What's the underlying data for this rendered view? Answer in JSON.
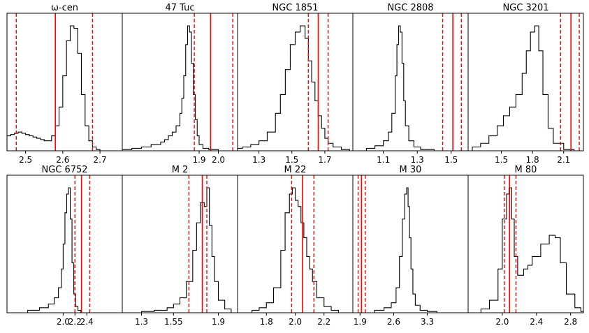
{
  "figure": {
    "rows": 2,
    "cols": 5
  },
  "chart_data": [
    {
      "type": "histogram",
      "title": "ω-cen",
      "xlim": [
        2.45,
        2.76
      ],
      "xticks": [
        2.5,
        2.6,
        2.7
      ],
      "xtick_labels": [
        "2.5",
        "2.6",
        "2.7"
      ],
      "vlines": {
        "median": 2.58,
        "dashed": [
          2.475,
          2.68
        ]
      },
      "x": [
        2.45,
        2.46,
        2.47,
        2.48,
        2.49,
        2.5,
        2.51,
        2.52,
        2.53,
        2.54,
        2.55,
        2.56,
        2.57,
        2.58,
        2.59,
        2.6,
        2.61,
        2.62,
        2.63,
        2.64,
        2.65,
        2.66,
        2.67,
        2.68,
        2.69,
        2.7,
        2.71,
        2.72,
        2.73,
        2.74,
        2.75
      ],
      "y": [
        0.12,
        0.13,
        0.14,
        0.15,
        0.14,
        0.13,
        0.12,
        0.11,
        0.1,
        0.09,
        0.08,
        0.08,
        0.12,
        0.2,
        0.35,
        0.6,
        0.88,
        1.0,
        0.98,
        0.78,
        0.45,
        0.2,
        0.08,
        0.03,
        0.01,
        0,
        0,
        0,
        0,
        0,
        0
      ]
    },
    {
      "type": "histogram",
      "title": "47 Tuc",
      "xlim": [
        1.5,
        2.1
      ],
      "xticks": [
        1.9,
        2.0
      ],
      "xtick_labels": [
        "1.9",
        "2.0"
      ],
      "vlines": {
        "median": 1.96,
        "dashed": [
          1.875,
          2.075
        ]
      },
      "x": [
        1.5,
        1.55,
        1.6,
        1.65,
        1.7,
        1.72,
        1.74,
        1.76,
        1.78,
        1.8,
        1.81,
        1.82,
        1.83,
        1.84,
        1.85,
        1.86,
        1.87,
        1.88,
        1.89,
        1.9,
        1.92,
        1.95,
        2.0,
        2.05
      ],
      "y": [
        0.01,
        0.02,
        0.03,
        0.05,
        0.07,
        0.09,
        0.12,
        0.15,
        0.2,
        0.3,
        0.42,
        0.6,
        0.85,
        1.0,
        0.95,
        0.7,
        0.45,
        0.25,
        0.12,
        0.05,
        0.02,
        0.01,
        0,
        0
      ]
    },
    {
      "type": "histogram",
      "title": "NGC 1851",
      "xlim": [
        1.17,
        1.87
      ],
      "xticks": [
        1.3,
        1.5,
        1.7
      ],
      "xtick_labels": [
        "1.3",
        "1.5",
        "1.7"
      ],
      "vlines": {
        "median": 1.66,
        "dashed": [
          1.6,
          1.72
        ]
      },
      "x": [
        1.17,
        1.2,
        1.25,
        1.3,
        1.35,
        1.4,
        1.43,
        1.46,
        1.49,
        1.52,
        1.55,
        1.58,
        1.6,
        1.62,
        1.64,
        1.66,
        1.68,
        1.7,
        1.72,
        1.75,
        1.8,
        1.85
      ],
      "y": [
        0.02,
        0.03,
        0.05,
        0.08,
        0.15,
        0.3,
        0.45,
        0.65,
        0.85,
        0.95,
        1.0,
        0.9,
        0.72,
        0.55,
        0.4,
        0.28,
        0.18,
        0.1,
        0.06,
        0.03,
        0.01,
        0
      ]
    },
    {
      "type": "histogram",
      "title": "NGC 2808",
      "xlim": [
        0.92,
        1.6
      ],
      "xticks": [
        1.1,
        1.3,
        1.5
      ],
      "xtick_labels": [
        "1.1",
        "1.3",
        "1.5"
      ],
      "vlines": {
        "median": 1.51,
        "dashed": [
          1.45,
          1.56
        ]
      },
      "x": [
        0.92,
        1.0,
        1.05,
        1.1,
        1.13,
        1.15,
        1.17,
        1.18,
        1.19,
        1.2,
        1.21,
        1.22,
        1.23,
        1.25,
        1.28,
        1.32,
        1.4,
        1.5
      ],
      "y": [
        0,
        0.02,
        0.04,
        0.08,
        0.15,
        0.3,
        0.6,
        0.85,
        1.0,
        0.95,
        0.7,
        0.4,
        0.2,
        0.08,
        0.03,
        0.01,
        0,
        0
      ]
    },
    {
      "type": "histogram",
      "title": "NGC 3201",
      "xlim": [
        1.18,
        2.29
      ],
      "xticks": [
        1.5,
        1.8,
        2.1
      ],
      "xtick_labels": [
        "1.5",
        "1.8",
        "2.1"
      ],
      "vlines": {
        "median": 2.17,
        "dashed": [
          2.07,
          2.25
        ]
      },
      "x": [
        1.22,
        1.3,
        1.38,
        1.46,
        1.52,
        1.58,
        1.64,
        1.7,
        1.74,
        1.78,
        1.82,
        1.86,
        1.9,
        1.95,
        2.0,
        2.1,
        2.2
      ],
      "y": [
        0.03,
        0.06,
        0.12,
        0.2,
        0.28,
        0.35,
        0.45,
        0.62,
        0.8,
        0.95,
        1.0,
        0.8,
        0.45,
        0.18,
        0.06,
        0.01,
        0
      ]
    },
    {
      "type": "histogram",
      "title": "NGC 6752",
      "xlim": [
        1.05,
        3.0
      ],
      "xticks": [
        2.0,
        2.2,
        2.4
      ],
      "xtick_labels": [
        "2.0",
        "2.2",
        "2.4"
      ],
      "vlines": {
        "median": 2.31,
        "dashed": [
          2.2,
          2.45
        ]
      },
      "x": [
        1.05,
        1.4,
        1.6,
        1.75,
        1.85,
        1.92,
        1.97,
        2.0,
        2.03,
        2.06,
        2.09,
        2.12,
        2.15,
        2.18,
        2.21,
        2.25,
        2.3,
        2.4
      ],
      "y": [
        0,
        0.02,
        0.04,
        0.07,
        0.12,
        0.2,
        0.35,
        0.55,
        0.8,
        0.95,
        1.0,
        0.75,
        0.4,
        0.15,
        0.05,
        0.02,
        0,
        0
      ]
    },
    {
      "type": "histogram",
      "title": "M 2",
      "xlim": [
        1.15,
        2.05
      ],
      "xticks": [
        1.3,
        1.55,
        1.9
      ],
      "xtick_labels": [
        "1.3",
        "1.55",
        "1.9"
      ],
      "vlines": {
        "median": 1.775,
        "dashed": [
          1.67,
          1.81
        ]
      },
      "x": [
        1.15,
        1.3,
        1.4,
        1.5,
        1.55,
        1.6,
        1.65,
        1.7,
        1.73,
        1.76,
        1.79,
        1.81,
        1.83,
        1.85,
        1.87,
        1.9,
        1.95,
        2.0
      ],
      "y": [
        0,
        0.01,
        0.02,
        0.04,
        0.07,
        0.12,
        0.25,
        0.5,
        0.72,
        0.88,
        0.85,
        1.0,
        0.7,
        0.45,
        0.25,
        0.1,
        0.03,
        0
      ]
    },
    {
      "type": "histogram",
      "title": "M 22",
      "xlim": [
        1.6,
        2.4
      ],
      "xticks": [
        1.8,
        2.0,
        2.2
      ],
      "xtick_labels": [
        "1.8",
        "2.0",
        "2.2"
      ],
      "vlines": {
        "median": 2.05,
        "dashed": [
          1.975,
          2.13
        ]
      },
      "x": [
        1.6,
        1.7,
        1.75,
        1.8,
        1.85,
        1.9,
        1.93,
        1.96,
        1.98,
        2.0,
        2.02,
        2.04,
        2.06,
        2.08,
        2.1,
        2.12,
        2.15,
        2.2,
        2.25,
        2.3
      ],
      "y": [
        0,
        0.02,
        0.04,
        0.08,
        0.2,
        0.5,
        0.8,
        0.95,
        1.0,
        0.9,
        0.85,
        0.72,
        0.6,
        0.45,
        0.35,
        0.25,
        0.12,
        0.05,
        0.02,
        0
      ]
    },
    {
      "type": "histogram",
      "title": "M 30",
      "xlim": [
        1.75,
        4.15
      ],
      "xticks": [
        1.9,
        2.6,
        3.3
      ],
      "xtick_labels": [
        "1.9",
        "2.6",
        "3.3"
      ],
      "vlines": {
        "median": 1.93,
        "dashed": [
          1.86,
          2.01
        ]
      },
      "x": [
        1.75,
        2.2,
        2.4,
        2.55,
        2.65,
        2.72,
        2.78,
        2.83,
        2.87,
        2.9,
        2.93,
        2.96,
        3.0,
        3.05,
        3.15,
        3.3,
        3.5
      ],
      "y": [
        0,
        0.02,
        0.04,
        0.08,
        0.2,
        0.45,
        0.75,
        0.95,
        1.0,
        0.85,
        0.6,
        0.35,
        0.15,
        0.06,
        0.02,
        0.01,
        0
      ]
    },
    {
      "type": "histogram",
      "title": "M 80",
      "xlim": [
        1.6,
        2.95
      ],
      "xticks": [
        2.0,
        2.4,
        2.8
      ],
      "xtick_labels": [
        "2.0",
        "2.4",
        "2.8"
      ],
      "vlines": {
        "median": 2.085,
        "dashed": [
          2.025,
          2.16
        ]
      },
      "x": [
        1.6,
        1.75,
        1.85,
        1.95,
        2.0,
        2.05,
        2.08,
        2.11,
        2.14,
        2.18,
        2.25,
        2.3,
        2.35,
        2.45,
        2.55,
        2.62,
        2.68,
        2.75,
        2.85,
        2.92
      ],
      "y": [
        0,
        0.03,
        0.1,
        0.35,
        0.75,
        0.95,
        1.0,
        0.75,
        0.45,
        0.3,
        0.35,
        0.38,
        0.45,
        0.55,
        0.62,
        0.6,
        0.4,
        0.15,
        0.04,
        0.01
      ]
    }
  ]
}
